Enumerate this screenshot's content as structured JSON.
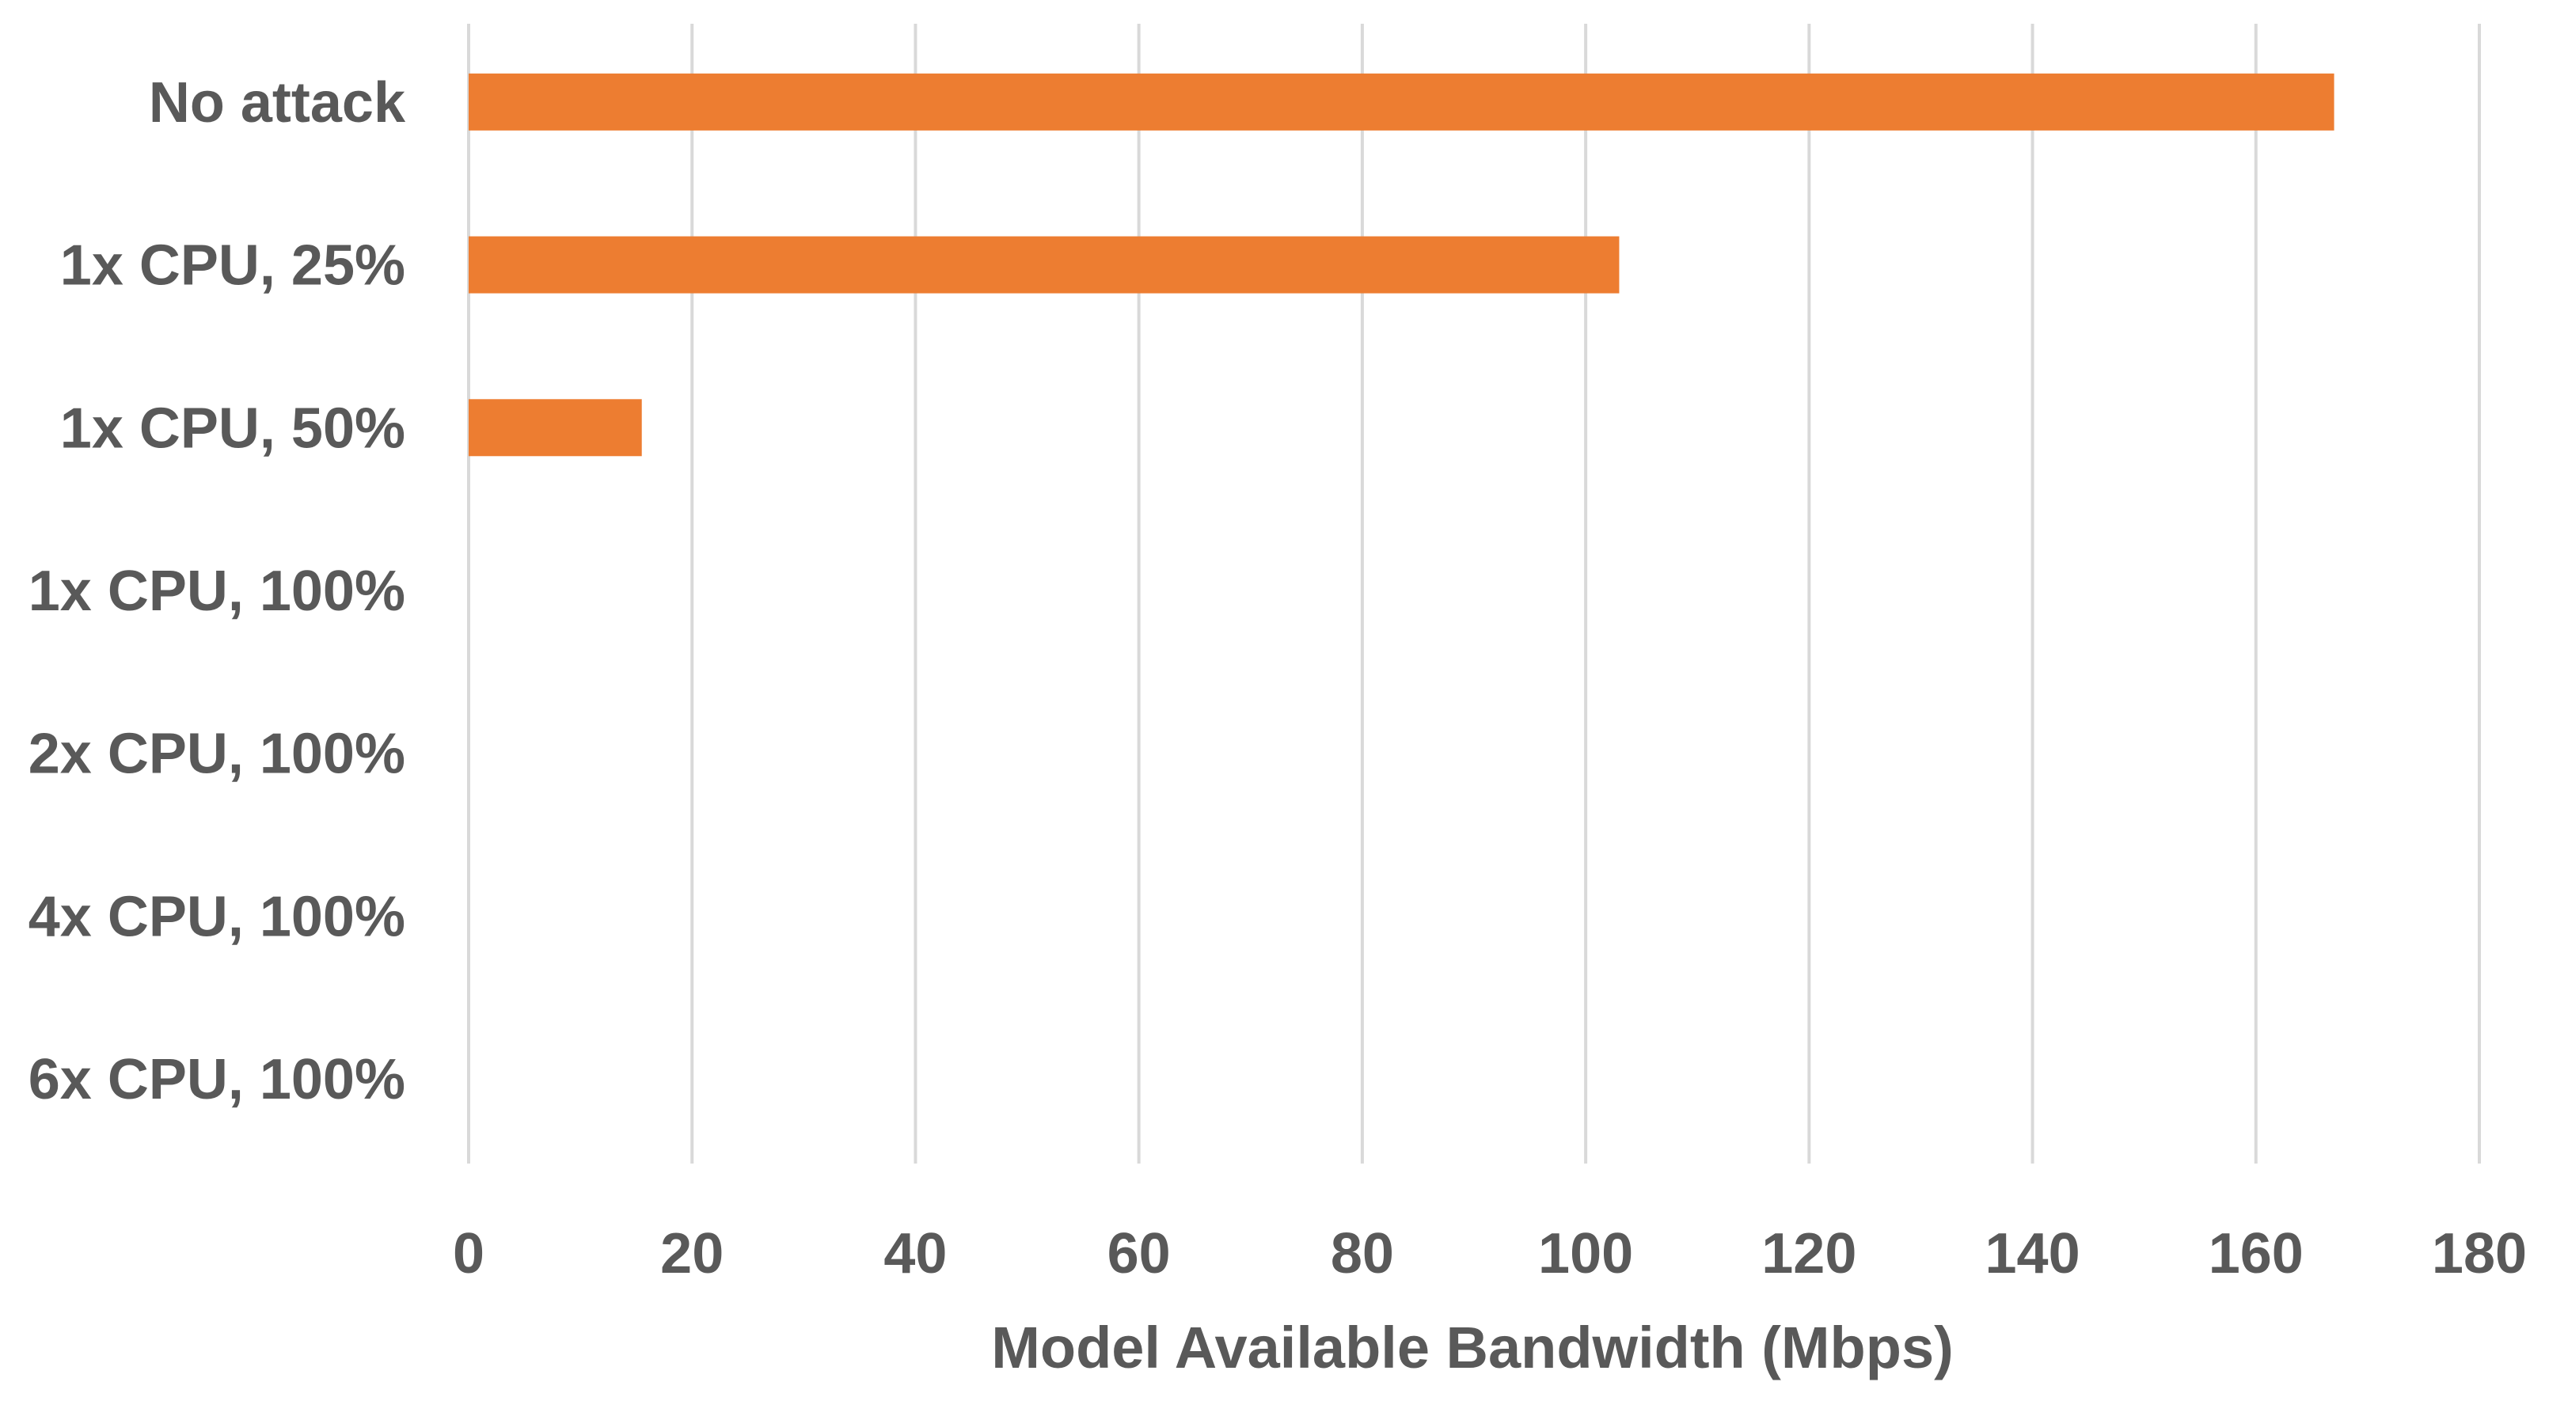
{
  "chart_data": {
    "type": "bar",
    "orientation": "horizontal",
    "categories": [
      "No attack",
      "1x CPU, 25%",
      "1x CPU, 50%",
      "1x CPU, 100%",
      "2x CPU, 100%",
      "4x CPU, 100%",
      "6x CPU, 100%"
    ],
    "values": [
      167,
      103,
      15.5,
      0,
      0,
      0,
      0
    ],
    "xlabel": "Model Available Bandwidth (Mbps)",
    "ylabel": "",
    "title": "",
    "xlim": [
      0,
      180
    ],
    "xticks": [
      "0",
      "20",
      "40",
      "60",
      "80",
      "100",
      "120",
      "140",
      "160",
      "180"
    ],
    "grid": "vertical",
    "legend": "none",
    "bar_color": "#ed7d31"
  }
}
